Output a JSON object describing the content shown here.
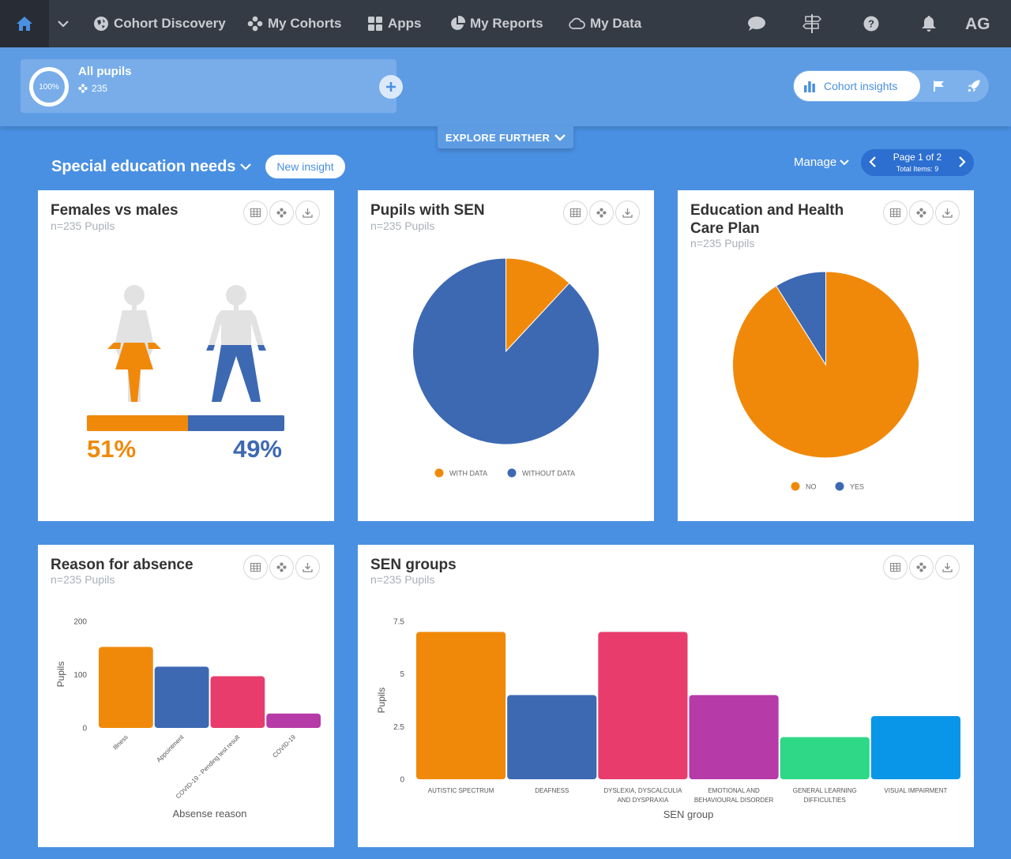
{
  "nav": {
    "items": [
      {
        "label": "Cohort Discovery",
        "icon": "discovery-icon"
      },
      {
        "label": "My Cohorts",
        "icon": "cohorts-icon"
      },
      {
        "label": "Apps",
        "icon": "apps-icon"
      },
      {
        "label": "My Reports",
        "icon": "reports-icon"
      },
      {
        "label": "My Data",
        "icon": "cloud-icon"
      }
    ],
    "user_initials": "AG"
  },
  "cohort": {
    "percent": "100%",
    "name": "All pupils",
    "count": "235",
    "insights_label": "Cohort insights"
  },
  "explore_label": "EXPLORE FURTHER",
  "section": {
    "title": "Special education needs",
    "new_insight": "New insight",
    "manage": "Manage",
    "page": "Page 1 of 2",
    "total": "Total Items: 9"
  },
  "colors": {
    "orange": "#f0890a",
    "blue": "#3d69b3",
    "pink": "#e83d6c",
    "purple": "#b63ba8",
    "green": "#2ed887",
    "lightblue": "#0996e8",
    "background": "#4a90e2"
  },
  "cards": {
    "gender": {
      "title": "Females vs males",
      "subtitle": "n=235 Pupils",
      "female_pct": "51%",
      "male_pct": "49%",
      "female_fraction": 0.51
    },
    "sen": {
      "title": "Pupils with SEN",
      "subtitle": "n=235 Pupils"
    },
    "ehcp": {
      "title": "Education and Health Care Plan",
      "subtitle": "n=235 Pupils"
    },
    "absence": {
      "title": "Reason for absence",
      "subtitle": "n=235 Pupils"
    },
    "groups": {
      "title": "SEN groups",
      "subtitle": "n=235 Pupils"
    }
  },
  "chart_data": [
    {
      "type": "pie",
      "title": "Pupils with SEN",
      "labels": [
        "WITH DATA",
        "WITHOUT DATA"
      ],
      "values": [
        28,
        207
      ],
      "colors": [
        "#f0890a",
        "#3d69b3"
      ],
      "legend": "bottom"
    },
    {
      "type": "pie",
      "title": "Education and Health Care Plan",
      "labels": [
        "NO",
        "YES"
      ],
      "values": [
        214,
        21
      ],
      "colors": [
        "#f0890a",
        "#3d69b3"
      ],
      "legend": "bottom"
    },
    {
      "type": "bar",
      "title": "Reason for absence",
      "categories": [
        "Illness",
        "Appointment",
        "COVID-19 - Pending test result",
        "COVID-19"
      ],
      "values": [
        152,
        115,
        97,
        27
      ],
      "colors": [
        "#f0890a",
        "#3d69b3",
        "#e83d6c",
        "#b63ba8"
      ],
      "xlabel": "Absense reason",
      "ylabel": "Pupils",
      "yticks": [
        "0",
        "100",
        "200"
      ],
      "ylim": [
        0,
        200
      ]
    },
    {
      "type": "bar",
      "title": "SEN groups",
      "categories": [
        "AUTISTIC SPECTRUM",
        "DEAFNESS",
        "DYSLEXIA, DYSCALCULIA AND DYSPRAXIA",
        "EMOTIONAL AND BEHAVIOURAL DISORDER",
        "GENERAL LEARNING DIFFICULTIES",
        "VISUAL IMPAIRMENT"
      ],
      "category_lines": [
        [
          "AUTISTIC SPECTRUM"
        ],
        [
          "DEAFNESS"
        ],
        [
          "DYSLEXIA, DYSCALCULIA",
          "AND DYSPRAXIA"
        ],
        [
          "EMOTIONAL AND",
          "BEHAVIOURAL DISORDER"
        ],
        [
          "GENERAL LEARNING",
          "DIFFICULTIES"
        ],
        [
          "VISUAL IMPAIRMENT"
        ]
      ],
      "values": [
        7,
        4,
        7,
        4,
        2,
        3
      ],
      "colors": [
        "#f0890a",
        "#3d69b3",
        "#e83d6c",
        "#b63ba8",
        "#2ed887",
        "#0996e8"
      ],
      "xlabel": "SEN group",
      "ylabel": "Pupils",
      "yticks": [
        "0",
        "2.5",
        "5",
        "7.5"
      ],
      "ylim": [
        0,
        7.5
      ]
    }
  ]
}
